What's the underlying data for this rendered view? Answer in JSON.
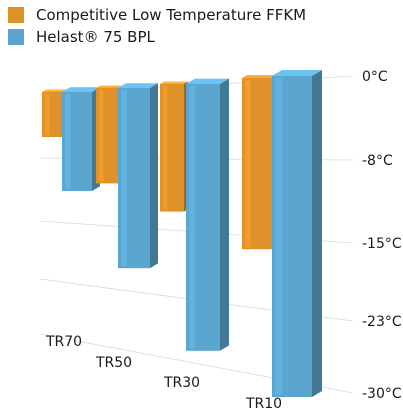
{
  "chart_data": {
    "type": "bar",
    "title": "",
    "xlabel": "",
    "ylabel": "",
    "categories": [
      "TR70",
      "TR50",
      "TR30",
      "TR10"
    ],
    "series": [
      {
        "name": "Competitive Low Temperature FFKM",
        "values": [
          -5,
          -9,
          -11,
          -16
        ],
        "color": "#e0922a"
      },
      {
        "name": "Helast® 75 BPL",
        "values": [
          -11,
          -17,
          -23,
          -30
        ],
        "color": "#5aa6cf"
      }
    ],
    "yticks": [
      "0°C",
      "-8°C",
      "-15°C",
      "-23°C",
      "-30°C"
    ],
    "ylim": [
      -30,
      0
    ],
    "legend_position": "top-left",
    "style": "3d"
  }
}
